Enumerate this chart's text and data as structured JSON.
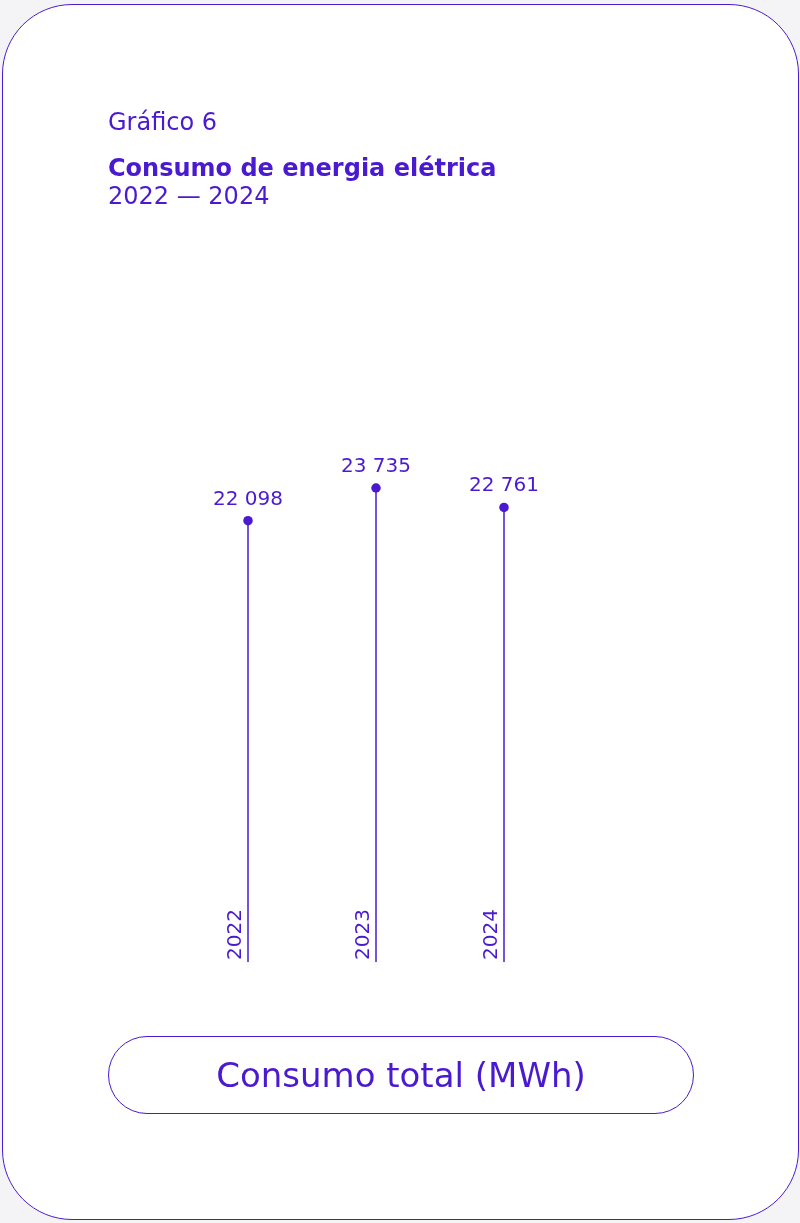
{
  "chart_data": {
    "type": "lollipop",
    "annotations": [
      "Gráfico 6"
    ],
    "title": "Consumo de energia elétrica",
    "subtitle": "2022 — 2024",
    "xlabel": "Consumo total (MWh)",
    "categories": [
      "2022",
      "2023",
      "2024"
    ],
    "values": [
      22098,
      23735,
      22761
    ],
    "value_labels": [
      "22 098",
      "23 735",
      "22 761"
    ],
    "color": "#4a1ad0",
    "marker": "circle"
  }
}
